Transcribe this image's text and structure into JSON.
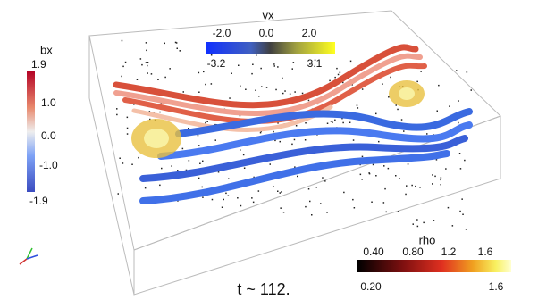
{
  "colorbars": {
    "bx": {
      "title": "bx",
      "ticks": [
        "1.0",
        "0.0",
        "-1.0"
      ],
      "range": [
        "1.9",
        "-1.9"
      ]
    },
    "vx": {
      "title": "vx",
      "ticks": [
        "-2.0",
        "0.0",
        "2.0"
      ],
      "range": [
        "-3.2",
        "3.1"
      ]
    },
    "rho": {
      "title": "rho",
      "ticks": [
        "0.40",
        "0.80",
        "1.2",
        "1.6"
      ],
      "range": [
        "0.20",
        "1.6"
      ]
    }
  },
  "time_label": "t ~ 112."
}
